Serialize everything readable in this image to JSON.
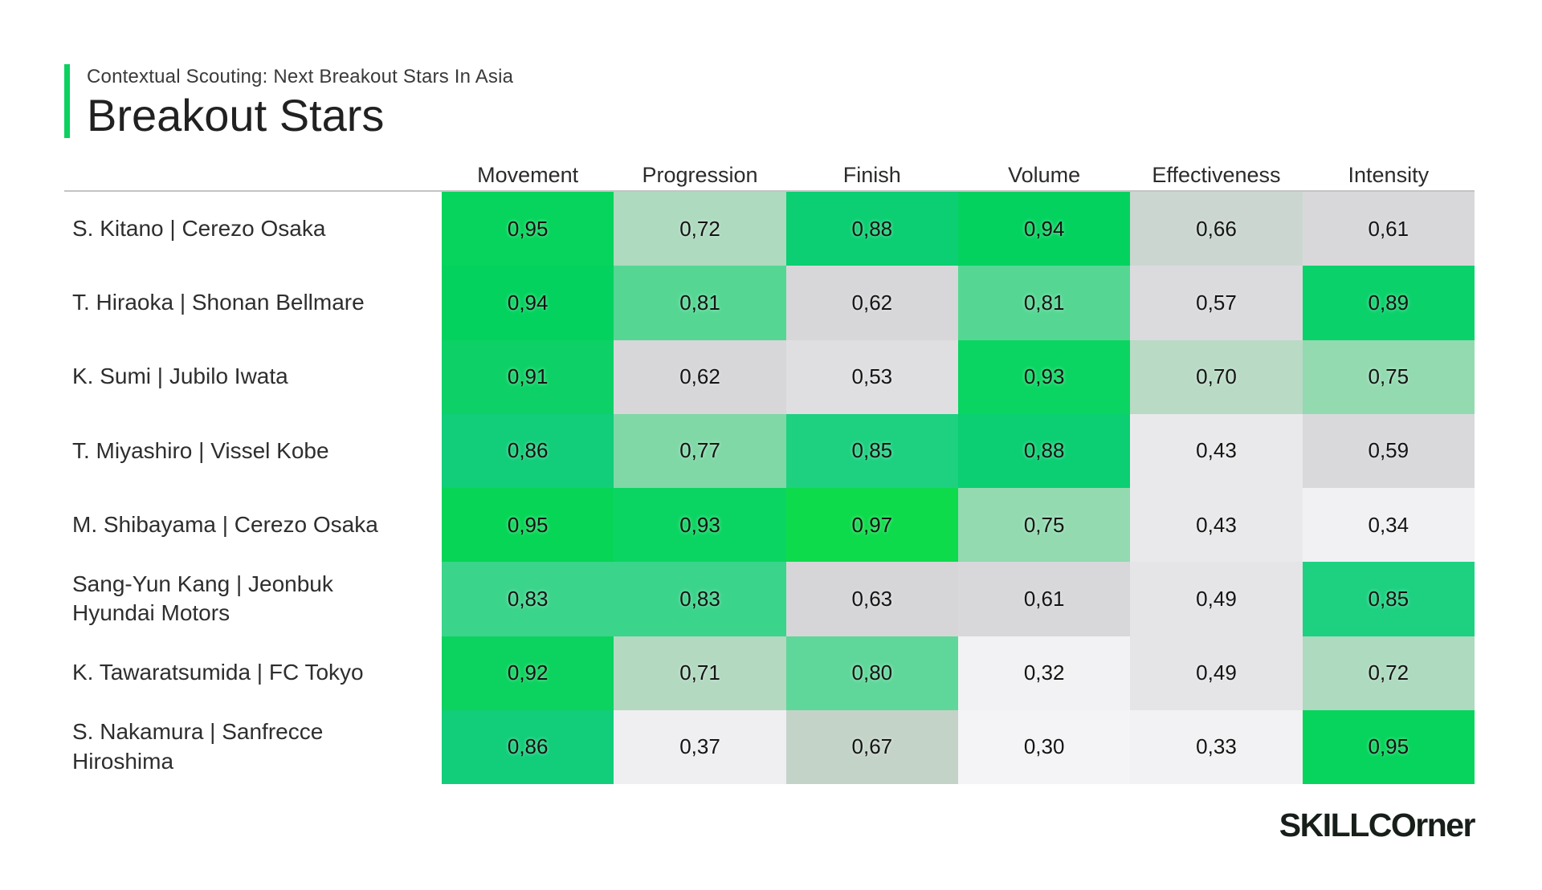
{
  "header": {
    "eyebrow": "Contextual Scouting: Next Breakout Stars In Asia",
    "title": "Breakout Stars",
    "accent_color": "#0cd15f"
  },
  "table": {
    "columns": [
      "Movement",
      "Progression",
      "Finish",
      "Volume",
      "Effectiveness",
      "Intensity"
    ],
    "rows": [
      {
        "player": "S. Kitano | Cerezo Osaka",
        "values": [
          "0,95",
          "0,72",
          "0,88",
          "0,94",
          "0,66",
          "0,61"
        ],
        "colors": [
          "#06d45c",
          "#aedabf",
          "#0bcf72",
          "#04d25f",
          "#cbd6d0",
          "#d8d8db"
        ]
      },
      {
        "player": "T. Hiraoka | Shonan Bellmare",
        "values": [
          "0,94",
          "0,81",
          "0,62",
          "0,81",
          "0,57",
          "0,89"
        ],
        "colors": [
          "#04d25f",
          "#55d793",
          "#d7d7da",
          "#55d793",
          "#dbdbde",
          "#0bd16b"
        ]
      },
      {
        "player": "K. Sumi | Jubilo Iwata",
        "values": [
          "0,91",
          "0,62",
          "0,53",
          "0,93",
          "0,70",
          "0,75"
        ],
        "colors": [
          "#0dd166",
          "#d7d7da",
          "#dfdfe2",
          "#0bd562",
          "#b9dac5",
          "#93dab0"
        ]
      },
      {
        "player": "T. Miyashiro | Vissel Kobe",
        "values": [
          "0,86",
          "0,77",
          "0,85",
          "0,88",
          "0,43",
          "0,59"
        ],
        "colors": [
          "#12cd79",
          "#81d8a7",
          "#1dd181",
          "#0bcf72",
          "#e9e9eb",
          "#d9d9dc"
        ]
      },
      {
        "player": "M. Shibayama | Cerezo Osaka",
        "values": [
          "0,95",
          "0,93",
          "0,97",
          "0,75",
          "0,43",
          "0,34"
        ],
        "colors": [
          "#07d556",
          "#0bd562",
          "#0ddb4b",
          "#93dab0",
          "#e9e9eb",
          "#f1f1f3"
        ]
      },
      {
        "player": "Sang-Yun Kang | Jeonbuk Hyundai Motors",
        "values": [
          "0,83",
          "0,83",
          "0,63",
          "0,61",
          "0,49",
          "0,85"
        ],
        "colors": [
          "#3bd48b",
          "#3bd48b",
          "#d6d6d9",
          "#d8d8db",
          "#e5e5e8",
          "#1dd181"
        ]
      },
      {
        "player": "K. Tawaratsumida | FC Tokyo",
        "values": [
          "0,92",
          "0,71",
          "0,80",
          "0,32",
          "0,49",
          "0,72"
        ],
        "colors": [
          "#0cd25f",
          "#b3d9c1",
          "#60d79a",
          "#f2f2f4",
          "#e5e5e8",
          "#aedabf"
        ]
      },
      {
        "player": "S. Nakamura | Sanfrecce Hiroshima",
        "values": [
          "0,86",
          "0,37",
          "0,67",
          "0,30",
          "0,33",
          "0,95"
        ],
        "colors": [
          "#12cd79",
          "#efeff1",
          "#c4d3c8",
          "#f4f4f6",
          "#f2f2f4",
          "#06d45c"
        ]
      }
    ]
  },
  "logo": {
    "caps": "SKILLCO",
    "lower": "rner"
  },
  "chart_data": {
    "type": "heatmap",
    "title": "Breakout Stars",
    "subtitle": "Contextual Scouting: Next Breakout Stars In Asia",
    "columns": [
      "Movement",
      "Progression",
      "Finish",
      "Volume",
      "Effectiveness",
      "Intensity"
    ],
    "rows": [
      "S. Kitano | Cerezo Osaka",
      "T. Hiraoka | Shonan Bellmare",
      "K. Sumi | Jubilo Iwata",
      "T. Miyashiro | Vissel Kobe",
      "M. Shibayama | Cerezo Osaka",
      "Sang-Yun Kang | Jeonbuk Hyundai Motors",
      "K. Tawaratsumida | FC Tokyo",
      "S. Nakamura | Sanfrecce Hiroshima"
    ],
    "values": [
      [
        0.95,
        0.72,
        0.88,
        0.94,
        0.66,
        0.61
      ],
      [
        0.94,
        0.81,
        0.62,
        0.81,
        0.57,
        0.89
      ],
      [
        0.91,
        0.62,
        0.53,
        0.93,
        0.7,
        0.75
      ],
      [
        0.86,
        0.77,
        0.85,
        0.88,
        0.43,
        0.59
      ],
      [
        0.95,
        0.93,
        0.97,
        0.75,
        0.43,
        0.34
      ],
      [
        0.83,
        0.83,
        0.63,
        0.61,
        0.49,
        0.85
      ],
      [
        0.92,
        0.71,
        0.8,
        0.32,
        0.49,
        0.72
      ],
      [
        0.86,
        0.37,
        0.67,
        0.3,
        0.33,
        0.95
      ]
    ],
    "value_range": [
      0,
      1
    ],
    "value_format": "comma-decimal",
    "color_scale": {
      "low": "#f4f4f6",
      "mid_gray": "#d8d8db",
      "high": "#06d45c"
    },
    "legend": "none",
    "grid": "off"
  }
}
